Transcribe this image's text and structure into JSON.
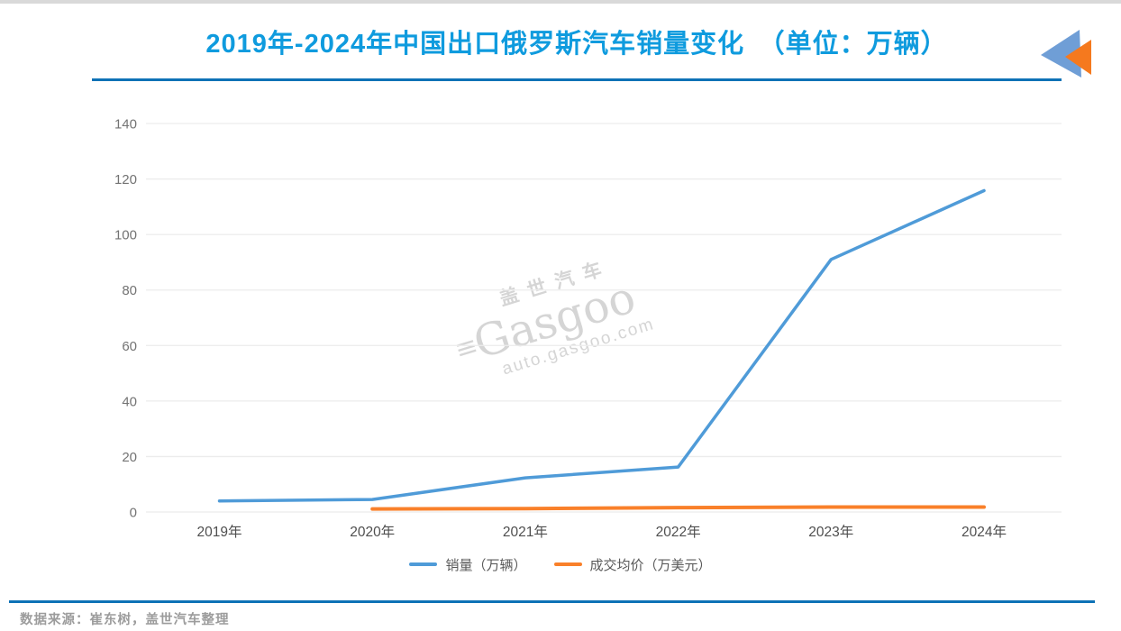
{
  "header": {
    "title": "2019年-2024年中国出口俄罗斯汽车销量变化　（单位：万辆）"
  },
  "logo": {
    "name": "gasgoo-double-arrow-logo",
    "blue": "#6f9ed6",
    "orange": "#f5791e"
  },
  "chart_data": {
    "type": "line",
    "title": "2019年-2024年中国出口俄罗斯汽车销量变化",
    "unit": "万辆",
    "categories": [
      "2019年",
      "2020年",
      "2021年",
      "2022年",
      "2023年",
      "2024年"
    ],
    "series": [
      {
        "name": "销量（万辆）",
        "color": "#4f9bd8",
        "width": 3.5,
        "values": [
          4,
          4.5,
          12.3,
          16.2,
          91,
          115.8
        ]
      },
      {
        "name": "成交均价（万美元）",
        "color": "#f9802a",
        "width": 4,
        "values": [
          null,
          1.1,
          1.2,
          1.6,
          1.8,
          1.8
        ]
      }
    ],
    "ylim": [
      0,
      140
    ],
    "ytick_step": 20,
    "yticks": [
      0,
      20,
      40,
      60,
      80,
      100,
      120,
      140
    ],
    "grid": true,
    "grid_color": "#ececec",
    "axis_label_color": "#737373",
    "x_label_color": "#4f4f4f",
    "legend_position": "bottom"
  },
  "watermark": {
    "cn": "盖世汽车",
    "en": "Gasgoo",
    "url": "auto.gasgoo.com"
  },
  "footer": {
    "source": "数据来源：崔东树，盖世汽车整理"
  }
}
